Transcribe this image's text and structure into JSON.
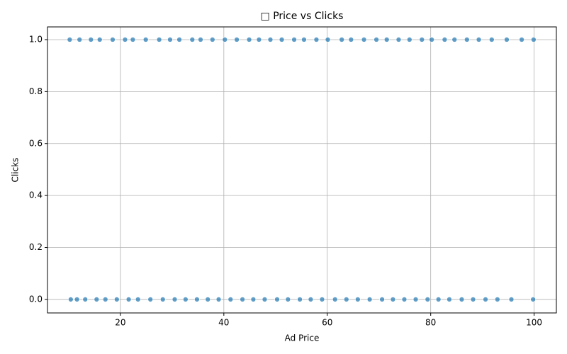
{
  "chart_data": {
    "type": "scatter",
    "title": "□ Price vs Clicks",
    "x_label": "Ad Price",
    "y_label": "Clicks",
    "x": [
      10.2,
      12.1,
      14.3,
      16.0,
      18.5,
      20.9,
      22.4,
      24.9,
      27.5,
      29.6,
      31.4,
      33.9,
      35.5,
      37.8,
      40.2,
      42.5,
      44.9,
      46.8,
      49.0,
      51.2,
      53.6,
      55.5,
      57.9,
      60.1,
      62.8,
      64.6,
      67.1,
      69.5,
      71.5,
      73.8,
      75.9,
      78.3,
      80.2,
      82.7,
      84.6,
      87.0,
      89.3,
      91.8,
      94.7,
      97.6,
      99.9,
      10.4,
      11.6,
      13.2,
      15.4,
      17.1,
      19.3,
      21.6,
      23.4,
      25.8,
      28.2,
      30.5,
      32.6,
      34.8,
      36.9,
      39.0,
      41.3,
      43.6,
      45.7,
      47.9,
      50.3,
      52.4,
      54.7,
      56.8,
      59.0,
      61.5,
      63.7,
      65.9,
      68.2,
      70.6,
      72.7,
      74.9,
      77.1,
      79.4,
      81.5,
      83.6,
      86.0,
      88.2,
      90.6,
      92.9,
      95.6,
      99.8
    ],
    "values": [
      1,
      1,
      1,
      1,
      1,
      1,
      1,
      1,
      1,
      1,
      1,
      1,
      1,
      1,
      1,
      1,
      1,
      1,
      1,
      1,
      1,
      1,
      1,
      1,
      1,
      1,
      1,
      1,
      1,
      1,
      1,
      1,
      1,
      1,
      1,
      1,
      1,
      1,
      1,
      1,
      1,
      0,
      0,
      0,
      0,
      0,
      0,
      0,
      0,
      0,
      0,
      0,
      0,
      0,
      0,
      0,
      0,
      0,
      0,
      0,
      0,
      0,
      0,
      0,
      0,
      0,
      0,
      0,
      0,
      0,
      0,
      0,
      0,
      0,
      0,
      0,
      0,
      0,
      0,
      0,
      0,
      0
    ],
    "color": "#1f77b4",
    "xlim": [
      5.9,
      104.3
    ],
    "xticks": [
      20,
      40,
      60,
      80,
      100
    ],
    "ylim": [
      -0.052,
      1.049
    ],
    "yticks": [
      {
        "value": 0,
        "label": "0.0"
      },
      0.2,
      0.4,
      0.6,
      0.8,
      {
        "value": 1,
        "label": "1.0"
      }
    ],
    "grid": true
  }
}
